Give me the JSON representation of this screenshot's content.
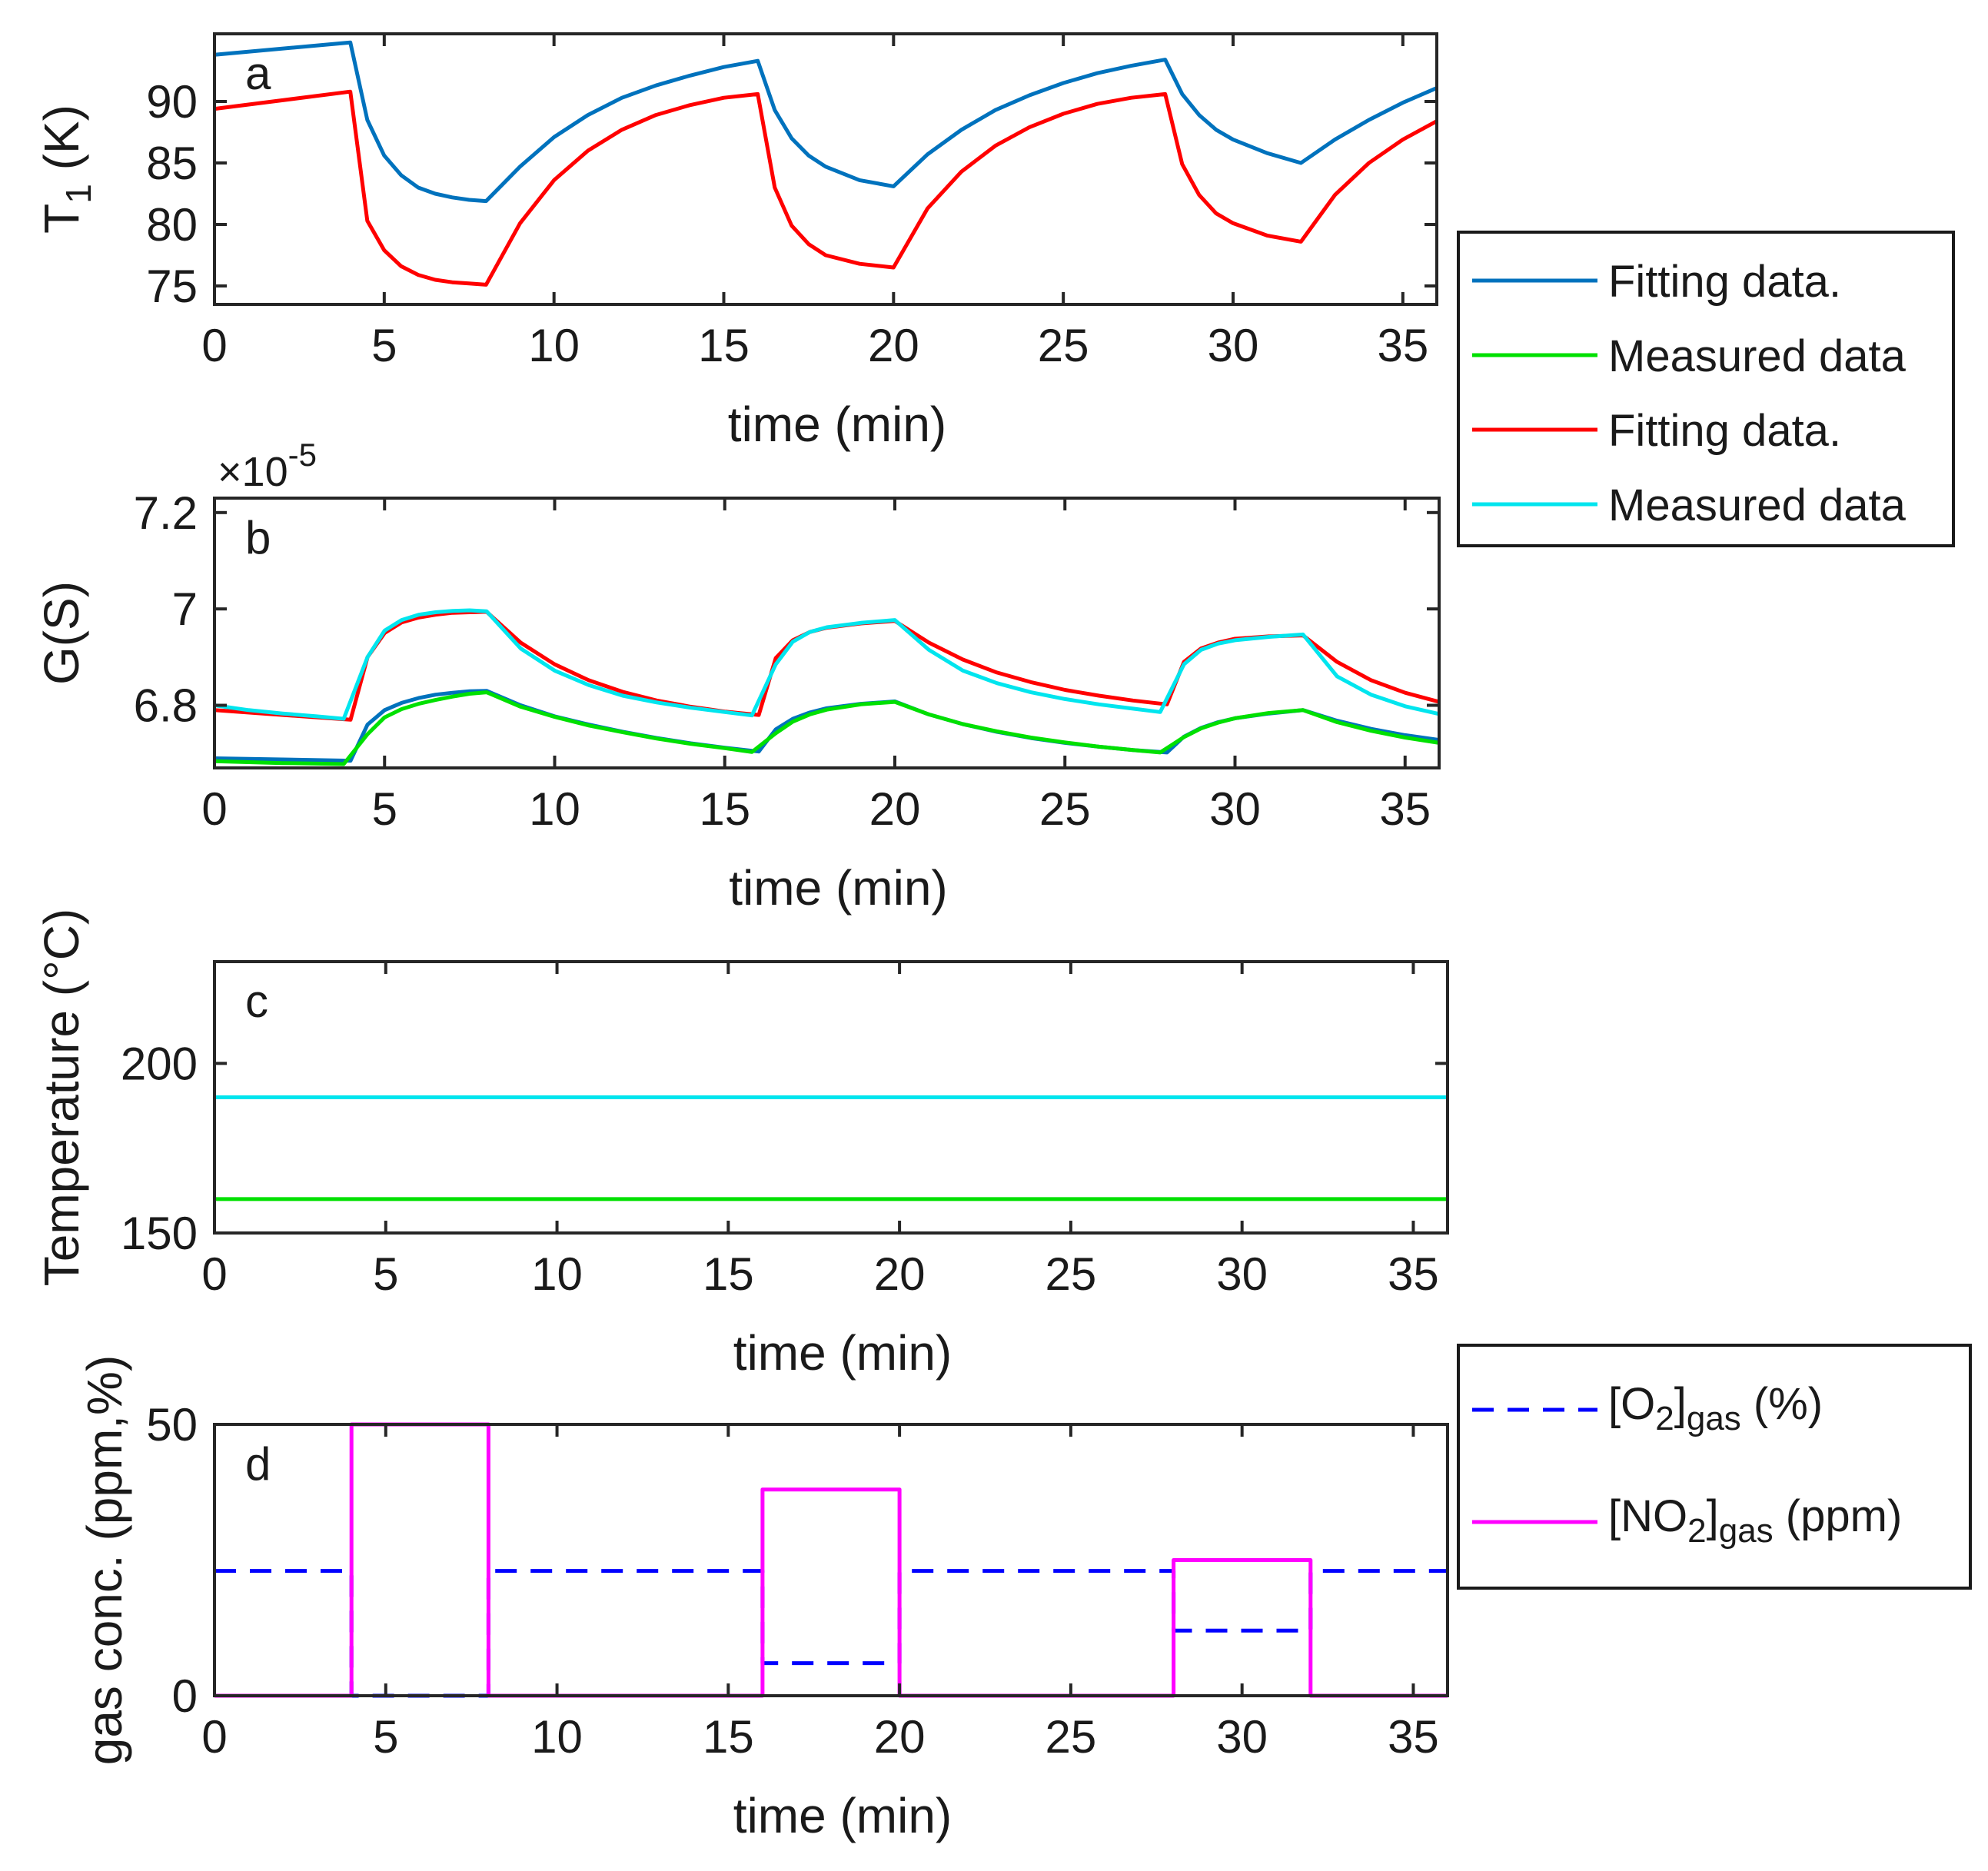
{
  "chart_data": [
    {
      "panel": "a",
      "type": "line",
      "xlabel": "time (min)",
      "ylabel": "T",
      "ylabel_sub": "1",
      "ylabel_suffix": " (K)",
      "xlim": [
        0,
        36
      ],
      "ylim": [
        73.5,
        95.5
      ],
      "xticks": [
        0,
        5,
        10,
        15,
        20,
        25,
        30,
        35
      ],
      "yticks": [
        75,
        80,
        85,
        90
      ],
      "series": [
        {
          "name": "Fitting data.",
          "color": "#0072BD",
          "x": [
            0,
            4,
            4.5,
            5,
            5.5,
            6,
            6.5,
            7,
            7.5,
            8,
            9,
            10,
            11,
            12,
            13,
            14,
            15,
            16,
            16.5,
            17,
            17.5,
            18,
            19,
            20,
            21,
            22,
            23,
            24,
            25,
            26,
            27,
            28,
            28.5,
            29,
            29.5,
            30,
            31,
            32,
            33,
            34,
            35,
            36
          ],
          "y": [
            93.8,
            94.8,
            88.5,
            85.6,
            84.0,
            83.0,
            82.5,
            82.2,
            82.0,
            81.9,
            84.7,
            87.1,
            88.9,
            90.3,
            91.3,
            92.1,
            92.8,
            93.3,
            89.3,
            87.0,
            85.6,
            84.7,
            83.6,
            83.1,
            85.7,
            87.7,
            89.3,
            90.5,
            91.5,
            92.3,
            92.9,
            93.4,
            90.6,
            88.9,
            87.7,
            86.9,
            85.8,
            85.0,
            86.9,
            88.5,
            89.9,
            91.1
          ]
        },
        {
          "name": "Measured data",
          "color": "#00E000",
          "x": [],
          "y": []
        },
        {
          "name": "Fitting data.",
          "color": "#FF0000",
          "x": [
            0,
            4,
            4.5,
            5,
            5.5,
            6,
            6.5,
            7,
            7.5,
            8,
            9,
            10,
            11,
            12,
            13,
            14,
            15,
            16,
            16.5,
            17,
            17.5,
            18,
            19,
            20,
            21,
            22,
            23,
            24,
            25,
            26,
            27,
            28,
            28.5,
            29,
            29.5,
            30,
            31,
            32,
            33,
            34,
            35,
            36
          ],
          "y": [
            89.4,
            90.8,
            80.3,
            77.9,
            76.6,
            75.9,
            75.5,
            75.3,
            75.2,
            75.1,
            80.1,
            83.6,
            86.0,
            87.7,
            88.9,
            89.7,
            90.3,
            90.6,
            83.0,
            79.9,
            78.4,
            77.5,
            76.8,
            76.5,
            81.3,
            84.3,
            86.4,
            87.9,
            89.0,
            89.8,
            90.3,
            90.6,
            84.9,
            82.4,
            80.9,
            80.1,
            79.1,
            78.6,
            82.4,
            85.0,
            86.9,
            88.4
          ]
        },
        {
          "name": "Measured data",
          "color": "#00E5EE",
          "x": [],
          "y": []
        }
      ]
    },
    {
      "panel": "b",
      "type": "line",
      "xlabel": "time (min)",
      "ylabel": "G(S)",
      "exponent_label": "×10",
      "exponent_value": "-5",
      "xlim": [
        0,
        36
      ],
      "ylim": [
        6.67,
        7.23
      ],
      "xticks": [
        0,
        5,
        10,
        15,
        20,
        25,
        30,
        35
      ],
      "yticks": [
        6.8,
        7,
        7.2
      ],
      "ytick_labels": [
        "6.8",
        "7",
        "7.2"
      ],
      "series": [
        {
          "name": "Fitting data.",
          "color": "#0072BD",
          "x": [
            0,
            4,
            4.5,
            5,
            5.5,
            6,
            6.5,
            7,
            7.5,
            8,
            9,
            10,
            11,
            12,
            13,
            14,
            15,
            16,
            16.5,
            17,
            17.5,
            18,
            19,
            20,
            21,
            22,
            23,
            24,
            25,
            26,
            27,
            28,
            28.5,
            29,
            29.5,
            30,
            31,
            32,
            33,
            34,
            35,
            36
          ],
          "y": [
            6.69,
            6.685,
            6.76,
            6.79,
            6.805,
            6.815,
            6.822,
            6.826,
            6.829,
            6.83,
            6.8,
            6.777,
            6.76,
            6.745,
            6.732,
            6.721,
            6.712,
            6.704,
            6.75,
            6.772,
            6.785,
            6.794,
            6.803,
            6.808,
            6.781,
            6.761,
            6.745,
            6.732,
            6.722,
            6.714,
            6.707,
            6.702,
            6.735,
            6.753,
            6.765,
            6.773,
            6.783,
            6.79,
            6.768,
            6.751,
            6.738,
            6.728
          ]
        },
        {
          "name": "Measured data",
          "color": "#00E000",
          "x": [
            0,
            1,
            2,
            3,
            3.8,
            4.5,
            5,
            5.5,
            6,
            6.5,
            7,
            7.5,
            8,
            9,
            10,
            11,
            12,
            13,
            14,
            15,
            15.8,
            16.5,
            17,
            17.5,
            18,
            19,
            20,
            21,
            22,
            23,
            24,
            25,
            26,
            27,
            27.8,
            28.5,
            29,
            29.5,
            30,
            31,
            32,
            33,
            34,
            35,
            36
          ],
          "y": [
            6.684,
            6.682,
            6.68,
            6.679,
            6.678,
            6.74,
            6.775,
            6.792,
            6.803,
            6.811,
            6.818,
            6.824,
            6.827,
            6.797,
            6.776,
            6.758,
            6.744,
            6.731,
            6.72,
            6.711,
            6.703,
            6.742,
            6.766,
            6.781,
            6.791,
            6.802,
            6.807,
            6.781,
            6.761,
            6.746,
            6.733,
            6.723,
            6.714,
            6.707,
            6.702,
            6.734,
            6.752,
            6.764,
            6.773,
            6.784,
            6.79,
            6.765,
            6.747,
            6.733,
            6.722
          ]
        },
        {
          "name": "Fitting data.",
          "color": "#FF0000",
          "x": [
            0,
            4,
            4.5,
            5,
            5.5,
            6,
            6.5,
            7,
            7.5,
            8,
            9,
            10,
            11,
            12,
            13,
            14,
            15,
            16,
            16.5,
            17,
            17.5,
            18,
            19,
            20,
            21,
            22,
            23,
            24,
            25,
            26,
            27,
            28,
            28.5,
            29,
            29.5,
            30,
            31,
            32,
            33,
            34,
            35,
            36
          ],
          "y": [
            6.79,
            6.77,
            6.9,
            6.95,
            6.972,
            6.982,
            6.988,
            6.992,
            6.993,
            6.994,
            6.93,
            6.885,
            6.852,
            6.828,
            6.81,
            6.797,
            6.787,
            6.78,
            6.898,
            6.935,
            6.952,
            6.961,
            6.97,
            6.975,
            6.93,
            6.895,
            6.868,
            6.848,
            6.832,
            6.82,
            6.81,
            6.802,
            6.89,
            6.918,
            6.93,
            6.938,
            6.943,
            6.945,
            6.89,
            6.852,
            6.826,
            6.807
          ]
        },
        {
          "name": "Measured data",
          "color": "#00E5EE",
          "x": [
            0,
            1,
            2,
            3,
            3.8,
            4.5,
            5,
            5.5,
            6,
            6.5,
            7,
            7.5,
            8,
            9,
            10,
            11,
            12,
            13,
            14,
            15,
            15.8,
            16.5,
            17,
            17.5,
            18,
            19,
            20,
            21,
            22,
            23,
            24,
            25,
            26,
            27,
            27.8,
            28.5,
            29,
            29.5,
            30,
            31,
            32,
            33,
            34,
            35,
            36
          ],
          "y": [
            6.8,
            6.79,
            6.783,
            6.777,
            6.772,
            6.9,
            6.955,
            6.977,
            6.988,
            6.993,
            6.996,
            6.997,
            6.995,
            6.918,
            6.872,
            6.842,
            6.82,
            6.806,
            6.795,
            6.786,
            6.779,
            6.885,
            6.932,
            6.952,
            6.962,
            6.971,
            6.977,
            6.915,
            6.872,
            6.846,
            6.827,
            6.813,
            6.802,
            6.793,
            6.786,
            6.885,
            6.915,
            6.928,
            6.935,
            6.942,
            6.947,
            6.86,
            6.822,
            6.798,
            6.782
          ]
        }
      ]
    },
    {
      "panel": "c",
      "type": "line",
      "xlabel": "time (min)",
      "ylabel": "Temperature (°C)",
      "xlim": [
        0,
        36
      ],
      "ylim": [
        150,
        230
      ],
      "xticks": [
        0,
        5,
        10,
        15,
        20,
        25,
        30,
        35
      ],
      "yticks": [
        150,
        200
      ],
      "series": [
        {
          "color": "#00E5EE",
          "x": [
            0,
            36
          ],
          "y": [
            190,
            190
          ]
        },
        {
          "color": "#00E000",
          "x": [
            0,
            36
          ],
          "y": [
            160,
            160
          ]
        }
      ]
    },
    {
      "panel": "d",
      "type": "line",
      "xlabel": "time (min)",
      "ylabel": "gas conc. (ppm,%)",
      "xlim": [
        0,
        36
      ],
      "ylim": [
        0,
        50
      ],
      "xticks": [
        0,
        5,
        10,
        15,
        20,
        25,
        30,
        35
      ],
      "yticks": [
        0,
        50
      ],
      "series": [
        {
          "name": "[O2]gas (%)",
          "legend_main": "[O",
          "legend_sub1": "2",
          "legend_mid": "]",
          "legend_sub2": "gas",
          "legend_tail": " (%)",
          "color": "#0000FF",
          "dashed": true,
          "x": [
            0,
            4,
            4,
            8,
            8,
            16,
            16,
            20,
            20,
            28,
            28,
            32,
            32,
            36
          ],
          "y": [
            23,
            23,
            0,
            0,
            23,
            23,
            6,
            6,
            23,
            23,
            12,
            12,
            23,
            23
          ]
        },
        {
          "name": "[NO2]gas (ppm)",
          "legend_main": "[NO",
          "legend_sub1": "2",
          "legend_mid": "]",
          "legend_sub2": "gas",
          "legend_tail": " (ppm)",
          "color": "#FF00FF",
          "dashed": false,
          "x": [
            0,
            4,
            4,
            8,
            8,
            16,
            16,
            20,
            20,
            28,
            28,
            32,
            32,
            36
          ],
          "y": [
            0,
            0,
            50,
            50,
            0,
            0,
            38,
            38,
            0,
            0,
            25,
            25,
            0,
            0
          ]
        }
      ]
    }
  ],
  "legend_top": {
    "entries": [
      {
        "label": "Fitting data.",
        "color": "#0072BD"
      },
      {
        "label": "Measured data",
        "color": "#00E000"
      },
      {
        "label": "Fitting data.",
        "color": "#FF0000"
      },
      {
        "label": "Measured data",
        "color": "#00E5EE"
      }
    ]
  }
}
